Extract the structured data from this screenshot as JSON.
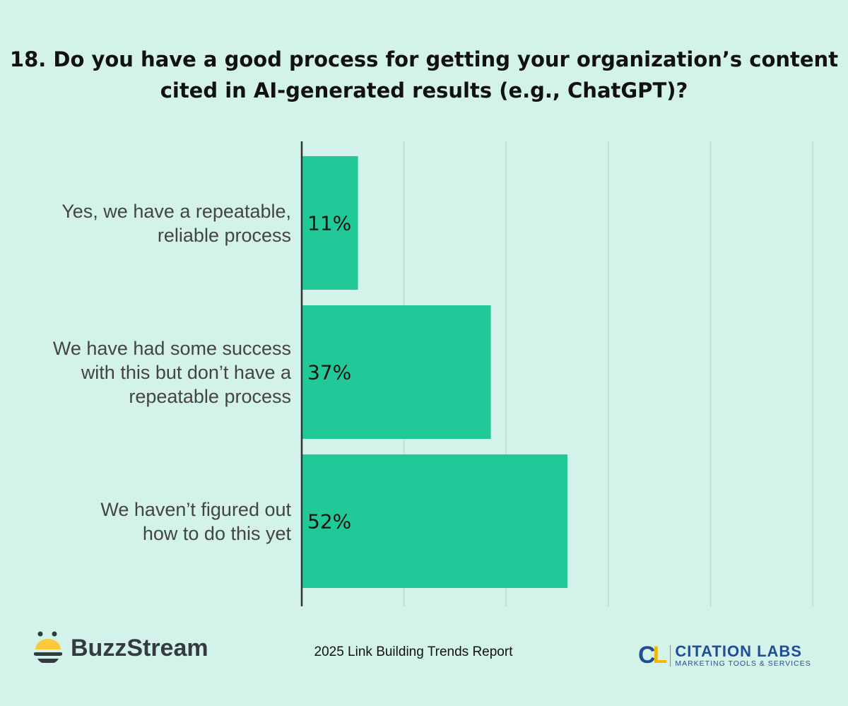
{
  "colors": {
    "background": "#d3f3ea",
    "bar": "#20c997",
    "grid": "#b9dcd2",
    "axis": "#333333"
  },
  "chart_data": {
    "type": "bar",
    "orientation": "horizontal",
    "title": "18. Do you have a good process for getting your organization’s content cited in AI-generated results (e.g., ChatGPT)?",
    "categories": [
      "Yes, we have a repeatable, reliable process",
      "We have had some success with this but don’t have a repeatable process",
      "We haven’t figured out how to do this yet"
    ],
    "category_lines": [
      [
        "Yes, we have a repeatable,",
        "reliable process"
      ],
      [
        "We have had some success",
        "with this but don’t have a",
        "repeatable process"
      ],
      [
        "We haven’t figured out",
        "how to do this yet"
      ]
    ],
    "values": [
      11,
      37,
      52
    ],
    "data_labels": [
      "11%",
      "37%",
      "52%"
    ],
    "xlim": [
      0,
      100
    ],
    "gridlines": [
      20,
      40,
      60,
      80,
      100
    ],
    "grid": true,
    "legend": "none"
  },
  "footer": {
    "report": "2025 Link Building Trends Report",
    "left_logo": "BuzzStream",
    "right_logo": {
      "mark": "CL",
      "name": "CITATION LABS",
      "tagline": "MARKETING TOOLS & SERVICES"
    }
  }
}
